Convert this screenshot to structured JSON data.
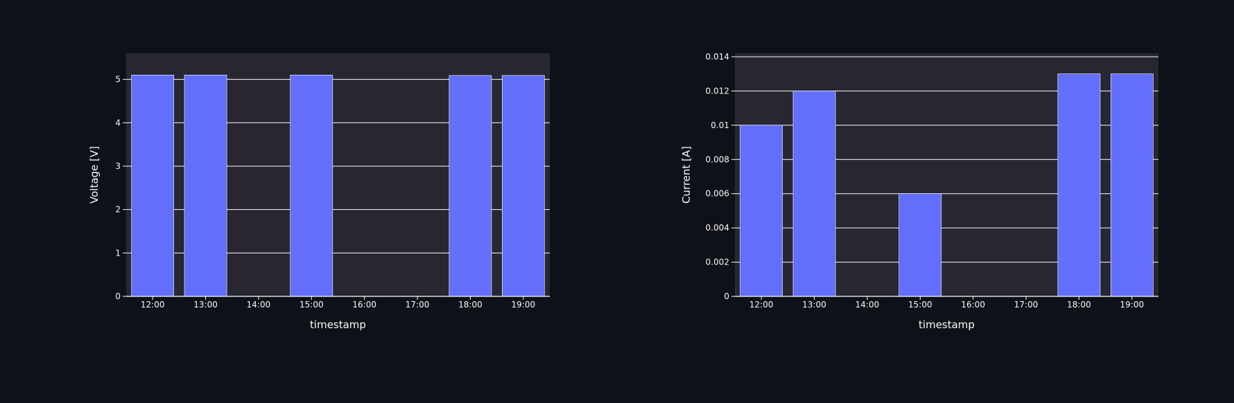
{
  "chart_data": [
    {
      "type": "bar",
      "title": "",
      "xlabel": "timestamp",
      "ylabel": "Voltage [V]",
      "categories": [
        "12:00",
        "13:00",
        "14:00",
        "15:00",
        "16:00",
        "17:00",
        "18:00",
        "19:00"
      ],
      "values": [
        5.1,
        5.1,
        0,
        5.1,
        0,
        0,
        5.09,
        5.09
      ],
      "ylim": [
        0,
        5.6
      ],
      "yticks": [
        0,
        1,
        2,
        3,
        4,
        5
      ],
      "ytick_labels": [
        "0",
        "1",
        "2",
        "3",
        "4",
        "5"
      ],
      "grid": true,
      "legend": "none",
      "bar_color": "#636efa",
      "plot_bg": "#262730"
    },
    {
      "type": "bar",
      "title": "",
      "xlabel": "timestamp",
      "ylabel": "Current [A]",
      "categories": [
        "12:00",
        "13:00",
        "14:00",
        "15:00",
        "16:00",
        "17:00",
        "18:00",
        "19:00"
      ],
      "values": [
        0.01,
        0.012,
        0,
        0.006,
        0,
        0,
        0.013,
        0.013
      ],
      "ylim": [
        0,
        0.0142
      ],
      "yticks": [
        0,
        0.002,
        0.004,
        0.006,
        0.008,
        0.01,
        0.012,
        0.014
      ],
      "ytick_labels": [
        "0",
        "0.002",
        "0.004",
        "0.006",
        "0.008",
        "0.01",
        "0.012",
        "0.014"
      ],
      "grid": true,
      "legend": "none",
      "bar_color": "#636efa",
      "plot_bg": "#262730"
    }
  ]
}
